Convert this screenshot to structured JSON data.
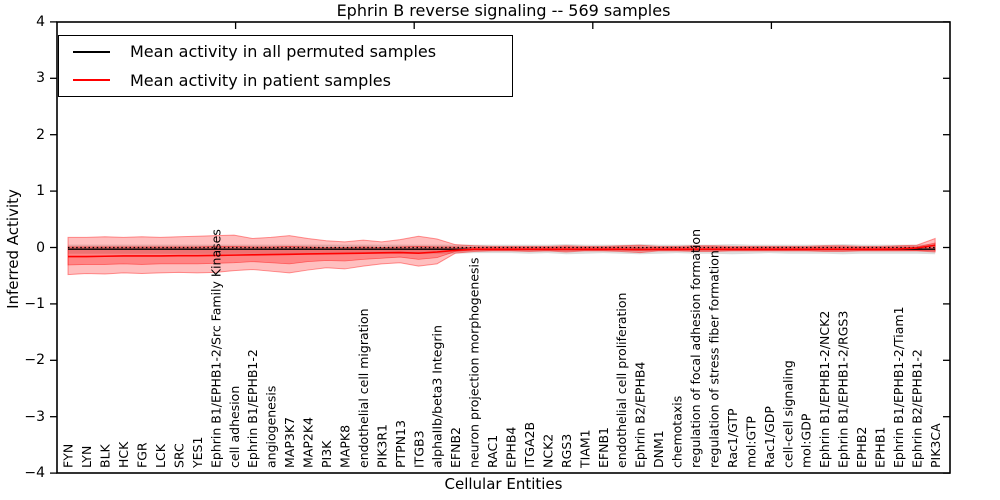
{
  "chart_data": {
    "type": "line",
    "title": "Ephrin B reverse signaling -- 569 samples",
    "xlabel": "Cellular Entities",
    "ylabel": "Inferred Activity",
    "ylim": [
      -4,
      4
    ],
    "grid": false,
    "legend_position": "upper left",
    "legend": [
      {
        "label": "Mean activity in all permuted samples",
        "color": "#000000"
      },
      {
        "label": "Mean activity in patient samples",
        "color": "#ff0000"
      }
    ],
    "yticks": [
      {
        "label": "4",
        "value": 4
      },
      {
        "label": "3",
        "value": 3
      },
      {
        "label": "2",
        "value": 2
      },
      {
        "label": "1",
        "value": 1
      },
      {
        "label": "0",
        "value": 0
      },
      {
        "label": "−1",
        "value": -1
      },
      {
        "label": "−2",
        "value": -2
      },
      {
        "label": "−3",
        "value": -3
      },
      {
        "label": "−4",
        "value": -4
      }
    ],
    "zero_line": {
      "style": "dotted",
      "color": "#000000",
      "value": 0
    },
    "categories": [
      "FYN",
      "LYN",
      "BLK",
      "HCK",
      "FGR",
      "LCK",
      "SRC",
      "YES1",
      "Ephrin B1/EPHB1-2/Src Family Kinases",
      "cell adhesion",
      "Ephrin B1/EPHB1-2",
      "angiogenesis",
      "MAP3K7",
      "MAP2K4",
      "PI3K",
      "MAPK8",
      "endothelial cell migration",
      "PIK3R1",
      "PTPN13",
      "ITGB3",
      "alphaIIb/beta3 Integrin",
      "EFNB2",
      "neuron projection morphogenesis",
      "RAC1",
      "EPHB4",
      "ITGA2B",
      "NCK2",
      "RGS3",
      "TIAM1",
      "EFNB1",
      "endothelial cell proliferation",
      "Ephrin B2/EPHB4",
      "DNM1",
      "chemotaxis",
      "regulation of focal adhesion formation",
      "regulation of stress fiber formation",
      "Rac1/GTP",
      "mol:GTP",
      "Rac1/GDP",
      "cell-cell signaling",
      "mol:GDP",
      "Ephrin B1/EPHB1-2/NCK2",
      "Ephrin B1/EPHB1-2/RGS3",
      "EPHB2",
      "EPHB1",
      "Ephrin B1/EPHB1-2/Tiam1",
      "Ephrin B2/EPHB1-2",
      "PIK3CA"
    ],
    "series": [
      {
        "name": "Mean activity in all permuted samples",
        "color": "#000000",
        "values": [
          -0.03,
          -0.03,
          -0.03,
          -0.03,
          -0.03,
          -0.03,
          -0.03,
          -0.03,
          -0.03,
          -0.03,
          -0.03,
          -0.03,
          -0.03,
          -0.03,
          -0.03,
          -0.03,
          -0.03,
          -0.03,
          -0.03,
          -0.03,
          -0.03,
          -0.03,
          -0.03,
          -0.03,
          -0.03,
          -0.03,
          -0.03,
          -0.03,
          -0.03,
          -0.03,
          -0.03,
          -0.03,
          -0.03,
          -0.03,
          -0.03,
          -0.03,
          -0.03,
          -0.03,
          -0.03,
          -0.03,
          -0.03,
          -0.03,
          -0.03,
          -0.03,
          -0.03,
          -0.03,
          -0.03,
          -0.03
        ]
      },
      {
        "name": "Mean activity in patient samples",
        "color": "#ff0000",
        "values": [
          -0.16,
          -0.16,
          -0.155,
          -0.15,
          -0.15,
          -0.15,
          -0.145,
          -0.145,
          -0.14,
          -0.135,
          -0.13,
          -0.125,
          -0.12,
          -0.115,
          -0.11,
          -0.105,
          -0.1,
          -0.095,
          -0.09,
          -0.1,
          -0.08,
          -0.05,
          -0.03,
          -0.03,
          -0.03,
          -0.03,
          -0.03,
          -0.03,
          -0.03,
          -0.03,
          -0.03,
          -0.035,
          -0.03,
          -0.03,
          -0.03,
          -0.03,
          -0.03,
          -0.03,
          -0.03,
          -0.03,
          -0.03,
          -0.03,
          -0.03,
          -0.03,
          -0.03,
          -0.025,
          -0.01,
          0.04
        ]
      }
    ],
    "bands": {
      "patient_outer": {
        "color": "rgba(255,0,0,0.25)",
        "edge": "rgba(255,0,0,0.4)",
        "top": [
          0.18,
          0.18,
          0.19,
          0.18,
          0.19,
          0.18,
          0.19,
          0.2,
          0.21,
          0.22,
          0.16,
          0.18,
          0.21,
          0.16,
          0.12,
          0.1,
          0.13,
          0.1,
          0.14,
          0.2,
          0.15,
          0.05,
          0.03,
          0.02,
          0.02,
          0.02,
          0.02,
          0.03,
          0.02,
          0.02,
          0.03,
          0.04,
          0.02,
          0.02,
          0.03,
          0.03,
          0.02,
          0.02,
          0.02,
          0.02,
          0.02,
          0.03,
          0.03,
          0.02,
          0.02,
          0.03,
          0.04,
          0.16
        ],
        "bottom": [
          -0.48,
          -0.46,
          -0.47,
          -0.45,
          -0.46,
          -0.45,
          -0.44,
          -0.45,
          -0.44,
          -0.41,
          -0.39,
          -0.42,
          -0.45,
          -0.4,
          -0.36,
          -0.38,
          -0.33,
          -0.29,
          -0.27,
          -0.33,
          -0.29,
          -0.1,
          -0.07,
          -0.06,
          -0.06,
          -0.07,
          -0.06,
          -0.08,
          -0.06,
          -0.06,
          -0.07,
          -0.09,
          -0.06,
          -0.06,
          -0.07,
          -0.07,
          -0.06,
          -0.06,
          -0.06,
          -0.06,
          -0.06,
          -0.07,
          -0.07,
          -0.06,
          -0.06,
          -0.06,
          -0.06,
          -0.08
        ]
      },
      "patient_inner": {
        "color": "rgba(255,0,0,0.3)",
        "edge": "rgba(255,0,0,0.45)",
        "top": [
          0.01,
          0.01,
          0.01,
          0.01,
          0.01,
          0.01,
          0.01,
          0.01,
          0.02,
          0.02,
          0.01,
          0.01,
          0.02,
          0.01,
          0.0,
          0.0,
          0.01,
          0.0,
          0.01,
          0.02,
          0.01,
          0.01,
          0.0,
          0.0,
          0.0,
          0.0,
          0.0,
          0.01,
          0.0,
          0.0,
          0.01,
          0.01,
          0.0,
          0.0,
          0.01,
          0.01,
          0.0,
          0.0,
          0.0,
          0.0,
          0.0,
          0.01,
          0.01,
          0.0,
          0.0,
          0.01,
          0.01,
          0.08
        ],
        "bottom": [
          -0.31,
          -0.3,
          -0.3,
          -0.29,
          -0.3,
          -0.29,
          -0.29,
          -0.29,
          -0.28,
          -0.27,
          -0.25,
          -0.27,
          -0.29,
          -0.25,
          -0.23,
          -0.24,
          -0.21,
          -0.19,
          -0.17,
          -0.21,
          -0.18,
          -0.07,
          -0.05,
          -0.05,
          -0.05,
          -0.05,
          -0.05,
          -0.06,
          -0.05,
          -0.05,
          -0.05,
          -0.06,
          -0.05,
          -0.05,
          -0.05,
          -0.05,
          -0.05,
          -0.05,
          -0.05,
          -0.05,
          -0.05,
          -0.05,
          -0.05,
          -0.05,
          -0.05,
          -0.05,
          -0.05,
          -0.06
        ]
      },
      "permuted": {
        "color": "rgba(115,115,115,0.25)",
        "edge": "none",
        "top": [
          0.05,
          0.05,
          0.05,
          0.05,
          0.05,
          0.05,
          0.05,
          0.05,
          0.05,
          0.05,
          0.05,
          0.05,
          0.05,
          0.05,
          0.05,
          0.05,
          0.05,
          0.05,
          0.05,
          0.05,
          0.05,
          0.05,
          0.05,
          0.05,
          0.05,
          0.05,
          0.05,
          0.06,
          0.05,
          0.05,
          0.05,
          0.06,
          0.05,
          0.05,
          0.05,
          0.05,
          0.06,
          0.05,
          0.05,
          0.05,
          0.05,
          0.05,
          0.06,
          0.05,
          0.05,
          0.05,
          0.05,
          0.06
        ],
        "bottom": [
          -0.11,
          -0.11,
          -0.11,
          -0.11,
          -0.11,
          -0.11,
          -0.11,
          -0.11,
          -0.11,
          -0.11,
          -0.11,
          -0.11,
          -0.11,
          -0.11,
          -0.11,
          -0.11,
          -0.11,
          -0.11,
          -0.11,
          -0.11,
          -0.11,
          -0.11,
          -0.1,
          -0.1,
          -0.1,
          -0.11,
          -0.1,
          -0.12,
          -0.11,
          -0.1,
          -0.11,
          -0.12,
          -0.11,
          -0.1,
          -0.11,
          -0.11,
          -0.12,
          -0.11,
          -0.1,
          -0.11,
          -0.11,
          -0.11,
          -0.12,
          -0.11,
          -0.11,
          -0.11,
          -0.11,
          -0.12
        ]
      }
    }
  }
}
